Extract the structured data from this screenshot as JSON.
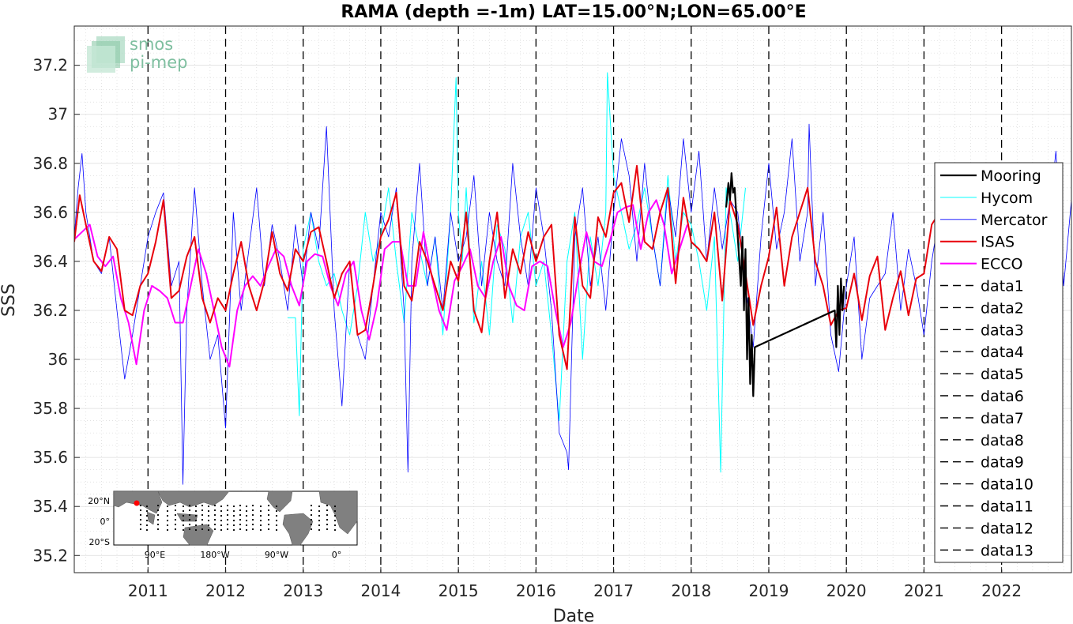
{
  "chart_data": {
    "type": "line",
    "title": "RAMA (depth =-1m) LAT=15.00°N;LON=65.00°E",
    "xlabel": "Date",
    "ylabel": "SSS",
    "xlim": [
      2010.05,
      2022.9
    ],
    "ylim": [
      35.13,
      37.36
    ],
    "x_ticks": [
      2011,
      2012,
      2013,
      2014,
      2015,
      2016,
      2017,
      2018,
      2019,
      2020,
      2021,
      2022
    ],
    "x_tick_labels": [
      "2011",
      "2012",
      "2013",
      "2014",
      "2015",
      "2016",
      "2017",
      "2018",
      "2019",
      "2020",
      "2021",
      "2022"
    ],
    "y_ticks": [
      35.2,
      35.4,
      35.6,
      35.8,
      36.0,
      36.2,
      36.4,
      36.6,
      36.8,
      37.0,
      37.2
    ],
    "y_tick_labels": [
      "35.2",
      "35.4",
      "35.6",
      "35.8",
      "36",
      "36.2",
      "36.4",
      "36.6",
      "36.8",
      "37",
      "37.2"
    ],
    "grid": true,
    "legend_position": "right",
    "vlines": [
      2011.0,
      2012.0,
      2013.0,
      2014.0,
      2015.0,
      2016.0,
      2017.0,
      2018.0,
      2019.0,
      2020.0,
      2021.0,
      2022.0
    ],
    "series": [
      {
        "name": "Mooring",
        "color": "#000000",
        "x": [
          2018.45,
          2018.48,
          2018.5,
          2018.52,
          2018.54,
          2018.56,
          2018.58,
          2018.6,
          2018.62,
          2018.64,
          2018.66,
          2018.68,
          2018.7,
          2018.72,
          2018.74,
          2018.76,
          2018.78,
          2018.8,
          2018.82,
          2019.85,
          2019.87,
          2019.89,
          2019.91,
          2019.93,
          2019.95,
          2019.97
        ],
        "y": [
          36.62,
          36.72,
          36.65,
          36.76,
          36.68,
          36.7,
          36.6,
          36.5,
          36.4,
          36.3,
          36.5,
          36.2,
          36.45,
          36.0,
          36.25,
          35.9,
          36.1,
          35.85,
          36.05,
          36.2,
          36.05,
          36.3,
          36.1,
          36.33,
          36.2,
          36.3
        ]
      },
      {
        "name": "Hycom",
        "color": "#00ffff",
        "x": [
          2012.8,
          2012.9,
          2012.95,
          2013.0,
          2013.1,
          2013.2,
          2013.3,
          2013.4,
          2013.5,
          2013.6,
          2013.7,
          2013.8,
          2013.9,
          2014.0,
          2014.1,
          2014.2,
          2014.3,
          2014.4,
          2014.5,
          2014.6,
          2014.7,
          2014.8,
          2014.9,
          2014.97,
          2015.0,
          2015.05,
          2015.1,
          2015.2,
          2015.3,
          2015.4,
          2015.5,
          2015.6,
          2015.7,
          2015.8,
          2015.9,
          2016.0,
          2016.1,
          2016.2,
          2016.3,
          2016.4,
          2016.5,
          2016.6,
          2016.7,
          2016.8,
          2016.9,
          2016.92,
          2017.0,
          2017.1,
          2017.2,
          2017.3,
          2017.4,
          2017.5,
          2017.6,
          2017.7,
          2017.8,
          2017.9,
          2018.0,
          2018.1,
          2018.2,
          2018.3,
          2018.38,
          2018.45,
          2018.6,
          2018.7
        ],
        "y": [
          36.17,
          36.17,
          35.77,
          36.45,
          36.6,
          36.4,
          36.3,
          36.35,
          36.2,
          36.1,
          36.3,
          36.6,
          36.4,
          36.5,
          36.7,
          36.4,
          36.15,
          36.6,
          36.45,
          36.3,
          36.5,
          36.1,
          36.6,
          37.15,
          36.6,
          36.4,
          36.7,
          36.15,
          36.4,
          36.1,
          36.55,
          36.45,
          36.15,
          36.5,
          36.6,
          36.3,
          36.4,
          36.1,
          35.75,
          36.4,
          36.6,
          36.0,
          36.5,
          36.3,
          36.6,
          37.17,
          36.75,
          36.6,
          36.45,
          36.55,
          36.7,
          36.5,
          36.3,
          36.75,
          36.4,
          36.6,
          36.55,
          36.4,
          36.2,
          36.5,
          35.54,
          36.7,
          36.4,
          36.7
        ]
      },
      {
        "name": "Mercator",
        "color": "#0000ff",
        "x": [
          2010.05,
          2010.1,
          2010.15,
          2010.2,
          2010.3,
          2010.4,
          2010.5,
          2010.6,
          2010.7,
          2010.8,
          2010.9,
          2011.0,
          2011.1,
          2011.2,
          2011.3,
          2011.4,
          2011.45,
          2011.5,
          2011.6,
          2011.7,
          2011.8,
          2011.9,
          2012.0,
          2012.1,
          2012.2,
          2012.3,
          2012.4,
          2012.5,
          2012.6,
          2012.7,
          2012.8,
          2012.9,
          2013.0,
          2013.1,
          2013.2,
          2013.3,
          2013.4,
          2013.5,
          2013.6,
          2013.7,
          2013.8,
          2013.9,
          2014.0,
          2014.1,
          2014.2,
          2014.3,
          2014.35,
          2014.4,
          2014.5,
          2014.6,
          2014.7,
          2014.8,
          2014.9,
          2015.0,
          2015.1,
          2015.2,
          2015.3,
          2015.4,
          2015.5,
          2015.6,
          2015.7,
          2015.8,
          2015.9,
          2016.0,
          2016.1,
          2016.2,
          2016.3,
          2016.4,
          2016.42,
          2016.5,
          2016.6,
          2016.7,
          2016.8,
          2016.9,
          2017.0,
          2017.1,
          2017.2,
          2017.3,
          2017.4,
          2017.5,
          2017.6,
          2017.7,
          2017.8,
          2017.9,
          2018.0,
          2018.1,
          2018.2,
          2018.3,
          2018.4,
          2018.5,
          2018.6,
          2018.7,
          2018.8,
          2018.9,
          2019.0,
          2019.1,
          2019.2,
          2019.3,
          2019.4,
          2019.5,
          2019.52,
          2019.6,
          2019.7,
          2019.8,
          2019.9,
          2020.0,
          2020.1,
          2020.2,
          2020.3,
          2020.4,
          2020.5,
          2020.6,
          2020.7,
          2020.8,
          2020.9,
          2021.0,
          2021.1,
          2021.2,
          2021.3,
          2021.4,
          2021.5,
          2021.6,
          2021.7,
          2021.8,
          2021.9,
          2022.0,
          2022.1,
          2022.2,
          2022.3,
          2022.4,
          2022.5,
          2022.6,
          2022.7,
          2022.8,
          2022.9
        ],
        "y": [
          36.5,
          36.7,
          36.84,
          36.6,
          36.4,
          36.35,
          36.5,
          36.2,
          35.92,
          36.1,
          36.3,
          36.5,
          36.6,
          36.68,
          36.3,
          36.4,
          35.49,
          36.2,
          36.7,
          36.3,
          36.0,
          36.1,
          35.72,
          36.6,
          36.2,
          36.45,
          36.7,
          36.3,
          36.55,
          36.4,
          36.2,
          36.55,
          36.3,
          36.6,
          36.45,
          36.95,
          36.2,
          35.81,
          36.4,
          36.1,
          36.0,
          36.3,
          36.6,
          36.5,
          36.7,
          36.2,
          35.54,
          36.4,
          36.8,
          36.3,
          36.5,
          36.2,
          36.6,
          36.4,
          36.5,
          36.75,
          36.3,
          36.6,
          36.4,
          36.3,
          36.8,
          36.5,
          36.3,
          36.7,
          36.5,
          36.2,
          35.7,
          35.62,
          35.55,
          36.5,
          36.7,
          36.3,
          36.5,
          36.2,
          36.6,
          36.9,
          36.75,
          36.4,
          36.8,
          36.5,
          36.3,
          36.7,
          36.5,
          36.9,
          36.6,
          36.85,
          36.4,
          36.7,
          36.45,
          36.65,
          36.6,
          36.3,
          36.05,
          36.5,
          36.8,
          36.45,
          36.6,
          36.9,
          36.4,
          36.6,
          36.96,
          36.3,
          36.6,
          36.1,
          35.95,
          36.3,
          36.5,
          36.0,
          36.25,
          36.3,
          36.35,
          36.6,
          36.2,
          36.45,
          36.3,
          36.1,
          36.4,
          36.6,
          36.3,
          36.15,
          36.35,
          36.6,
          36.4,
          36.8,
          36.5,
          36.6,
          36.75,
          36.7,
          36.3,
          36.5,
          36.6,
          36.55,
          36.85,
          36.3,
          36.65
        ]
      },
      {
        "name": "ISAS",
        "color": "#e8000b",
        "x": [
          2010.05,
          2010.12,
          2010.2,
          2010.3,
          2010.4,
          2010.5,
          2010.6,
          2010.7,
          2010.8,
          2010.9,
          2011.0,
          2011.1,
          2011.2,
          2011.3,
          2011.4,
          2011.5,
          2011.6,
          2011.7,
          2011.8,
          2011.9,
          2012.0,
          2012.1,
          2012.2,
          2012.3,
          2012.4,
          2012.5,
          2012.6,
          2012.7,
          2012.8,
          2012.9,
          2013.0,
          2013.1,
          2013.2,
          2013.3,
          2013.4,
          2013.5,
          2013.6,
          2013.7,
          2013.8,
          2013.9,
          2014.0,
          2014.1,
          2014.2,
          2014.3,
          2014.4,
          2014.5,
          2014.6,
          2014.7,
          2014.8,
          2014.9,
          2015.0,
          2015.1,
          2015.2,
          2015.3,
          2015.4,
          2015.5,
          2015.6,
          2015.7,
          2015.8,
          2015.9,
          2016.0,
          2016.1,
          2016.2,
          2016.3,
          2016.4,
          2016.5,
          2016.6,
          2016.7,
          2016.8,
          2016.9,
          2017.0,
          2017.1,
          2017.2,
          2017.3,
          2017.4,
          2017.5,
          2017.6,
          2017.7,
          2017.8,
          2017.9,
          2018.0,
          2018.1,
          2018.2,
          2018.3,
          2018.4,
          2018.5,
          2018.6,
          2018.7,
          2018.8,
          2018.9,
          2019.0,
          2019.1,
          2019.2,
          2019.3,
          2019.4,
          2019.5,
          2019.6,
          2019.7,
          2019.8,
          2019.9,
          2020.0,
          2020.1,
          2020.2,
          2020.3,
          2020.4,
          2020.5,
          2020.6,
          2020.7,
          2020.8,
          2020.9,
          2021.0,
          2021.1,
          2021.2
        ],
        "y": [
          36.48,
          36.67,
          36.55,
          36.4,
          36.36,
          36.5,
          36.45,
          36.2,
          36.18,
          36.3,
          36.35,
          36.48,
          36.65,
          36.25,
          36.28,
          36.42,
          36.5,
          36.25,
          36.15,
          36.25,
          36.2,
          36.35,
          36.48,
          36.3,
          36.2,
          36.32,
          36.52,
          36.35,
          36.28,
          36.45,
          36.4,
          36.52,
          36.54,
          36.4,
          36.25,
          36.35,
          36.4,
          36.1,
          36.12,
          36.3,
          36.5,
          36.57,
          36.68,
          36.3,
          36.24,
          36.48,
          36.4,
          36.3,
          36.2,
          36.4,
          36.32,
          36.6,
          36.2,
          36.11,
          36.4,
          36.6,
          36.25,
          36.45,
          36.35,
          36.52,
          36.4,
          36.5,
          36.55,
          36.1,
          35.96,
          36.58,
          36.3,
          36.25,
          36.58,
          36.5,
          36.68,
          36.72,
          36.56,
          36.79,
          36.48,
          36.45,
          36.6,
          36.7,
          36.31,
          36.66,
          36.48,
          36.45,
          36.4,
          36.6,
          36.24,
          36.65,
          36.55,
          36.35,
          36.14,
          36.3,
          36.42,
          36.62,
          36.3,
          36.5,
          36.6,
          36.7,
          36.4,
          36.3,
          36.14,
          36.2,
          36.21,
          36.35,
          36.16,
          36.34,
          36.42,
          36.12,
          36.25,
          36.36,
          36.18,
          36.33,
          36.35,
          36.55,
          36.6
        ]
      },
      {
        "name": "ECCO",
        "color": "#ff00ff",
        "x": [
          2010.05,
          2010.15,
          2010.25,
          2010.35,
          2010.45,
          2010.55,
          2010.65,
          2010.75,
          2010.85,
          2010.95,
          2011.05,
          2011.15,
          2011.25,
          2011.35,
          2011.45,
          2011.55,
          2011.65,
          2011.75,
          2011.85,
          2011.95,
          2012.05,
          2012.15,
          2012.25,
          2012.35,
          2012.45,
          2012.55,
          2012.65,
          2012.75,
          2012.85,
          2012.95,
          2013.05,
          2013.15,
          2013.25,
          2013.35,
          2013.45,
          2013.55,
          2013.65,
          2013.75,
          2013.85,
          2013.95,
          2014.05,
          2014.15,
          2014.25,
          2014.35,
          2014.45,
          2014.55,
          2014.65,
          2014.75,
          2014.85,
          2014.95,
          2015.05,
          2015.15,
          2015.25,
          2015.35,
          2015.45,
          2015.55,
          2015.65,
          2015.75,
          2015.85,
          2015.95,
          2016.05,
          2016.15,
          2016.25,
          2016.35,
          2016.45,
          2016.55,
          2016.65,
          2016.75,
          2016.85,
          2016.95,
          2017.05,
          2017.15,
          2017.25,
          2017.35,
          2017.45,
          2017.55,
          2017.65,
          2017.75,
          2017.85,
          2017.95
        ],
        "y": [
          36.49,
          36.52,
          36.55,
          36.42,
          36.38,
          36.42,
          36.25,
          36.15,
          35.98,
          36.2,
          36.3,
          36.28,
          36.25,
          36.15,
          36.15,
          36.3,
          36.45,
          36.35,
          36.2,
          36.05,
          35.97,
          36.2,
          36.3,
          36.34,
          36.3,
          36.38,
          36.45,
          36.42,
          36.3,
          36.22,
          36.4,
          36.43,
          36.42,
          36.3,
          36.22,
          36.35,
          36.4,
          36.2,
          36.08,
          36.22,
          36.45,
          36.48,
          36.48,
          36.3,
          36.3,
          36.52,
          36.35,
          36.2,
          36.12,
          36.32,
          36.38,
          36.45,
          36.3,
          36.25,
          36.4,
          36.5,
          36.3,
          36.22,
          36.2,
          36.38,
          36.4,
          36.38,
          36.2,
          36.05,
          36.15,
          36.35,
          36.52,
          36.4,
          36.38,
          36.48,
          36.6,
          36.62,
          36.63,
          36.45,
          36.6,
          36.65,
          36.55,
          36.35,
          36.45,
          36.55
        ]
      }
    ],
    "legend": [
      "Mooring",
      "Hycom",
      "Mercator",
      "ISAS",
      "ECCO",
      "data1",
      "data2",
      "data3",
      "data4",
      "data5",
      "data6",
      "data7",
      "data8",
      "data9",
      "data10",
      "data11",
      "data12",
      "data13"
    ]
  },
  "logo": {
    "line1": "smos",
    "line2": "pi-mep"
  },
  "inset_map": {
    "lat_labels": [
      "20°N",
      "0°",
      "20°S"
    ],
    "lon_labels": [
      "90°E",
      "180°W",
      "90°W",
      "0°"
    ],
    "marker_color": "#ff0000"
  }
}
